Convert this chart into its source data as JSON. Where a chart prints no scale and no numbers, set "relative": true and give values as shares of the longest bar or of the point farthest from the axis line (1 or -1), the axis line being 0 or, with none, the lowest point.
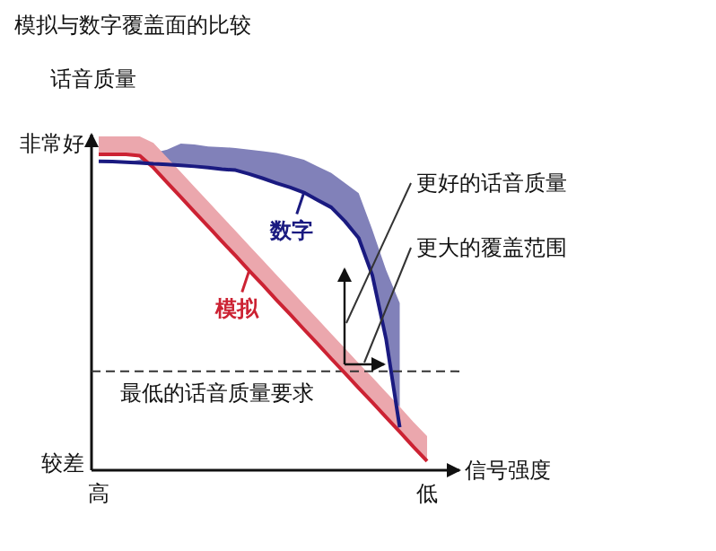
{
  "chart_data": {
    "type": "line",
    "title": "模拟与数字覆盖面的比较",
    "xlabel": "信号强度",
    "ylabel": "话音质量",
    "relative": true,
    "categories": [
      "高",
      null,
      null,
      null,
      null,
      null,
      null,
      null,
      null,
      null,
      null,
      null,
      null,
      null,
      null,
      null,
      null,
      null,
      null,
      null,
      null,
      null,
      null,
      null,
      "低"
    ],
    "series": [
      {
        "name": "模拟",
        "color": "#cc2233",
        "values": [
          1,
          1,
          1,
          0.996,
          0.958,
          0.911,
          0.865,
          0.818,
          0.772,
          0.725,
          0.679,
          0.632,
          0.586,
          0.539,
          0.493,
          0.446,
          0.4,
          0.353,
          0.307,
          0.26,
          0.215,
          0.168,
          0.122,
          0.074,
          0.029
        ],
        "lower": [
          1,
          1,
          1,
          0.996,
          0.958,
          0.911,
          0.865,
          0.818,
          0.772,
          0.725,
          0.679,
          0.632,
          0.586,
          0.539,
          0.493,
          0.446,
          0.4,
          0.353,
          0.307,
          0.26,
          0.215,
          0.168,
          0.122,
          0.074,
          0.029
        ],
        "upper": [
          1.057,
          1.057,
          1.057,
          1.057,
          1.036,
          0.99,
          0.944,
          0.897,
          0.851,
          0.804,
          0.758,
          0.711,
          0.665,
          0.618,
          0.572,
          0.525,
          0.479,
          0.432,
          0.386,
          0.339,
          0.294,
          0.247,
          0.201,
          0.153,
          0.108
        ]
      },
      {
        "name": "数字",
        "color": "#1a1a80",
        "values": [
          0.978,
          0.977,
          0.975,
          0.973,
          0.97,
          0.968,
          0.965,
          0.962,
          0.958,
          0.953,
          0.95,
          0.938,
          0.924,
          0.909,
          0.895,
          0.879,
          0.855,
          0.832,
          0.788,
          0.735,
          0.617,
          0.416,
          0.136,
          null,
          null
        ],
        "lower": [
          0.978,
          0.977,
          0.975,
          0.973,
          0.97,
          0.968,
          0.965,
          0.962,
          0.958,
          0.953,
          0.95,
          0.938,
          0.924,
          0.909,
          0.895,
          0.879,
          0.855,
          0.832,
          0.788,
          0.735,
          0.617,
          0.416,
          0.136,
          null,
          null
        ],
        "upper": [
          0.978,
          0.977,
          0.975,
          0.983,
          1.004,
          1.015,
          1.034,
          1.031,
          1.025,
          1.023,
          1.02,
          1.015,
          1.01,
          1.004,
          0.994,
          0.983,
          0.962,
          0.941,
          0.909,
          0.877,
          0.761,
          0.634,
          0.529,
          null,
          null
        ]
      }
    ],
    "ref_lines": [
      {
        "axis": "y",
        "value": 0.313,
        "label": "最低的话音质量要求",
        "line_style": "dashed",
        "color": "#333333"
      }
    ],
    "annotations": [
      "非常好",
      "较差",
      "更好的话音质量",
      "更大的覆盖范围"
    ],
    "legend": "center",
    "marker": "none",
    "line_style": "solid"
  }
}
